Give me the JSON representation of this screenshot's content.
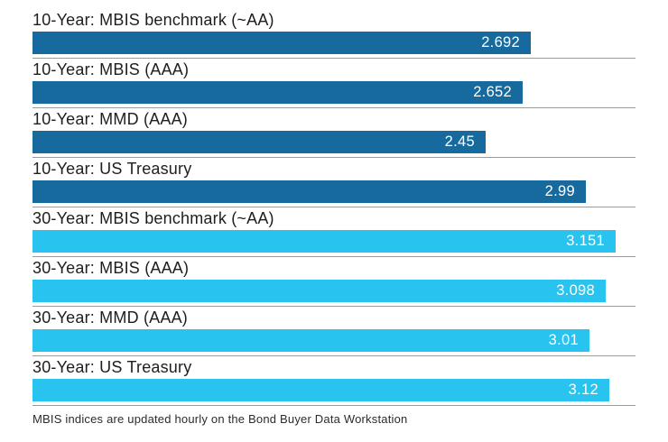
{
  "chart_data": {
    "type": "bar",
    "orientation": "horizontal",
    "title": "",
    "xlabel": "",
    "ylabel": "",
    "xlim": [
      0,
      3.3
    ],
    "grid": false,
    "legend": "none",
    "categories": [
      "10-Year: MBIS benchmark (~AA)",
      "10-Year: MBIS (AAA)",
      "10-Year: MMD (AAA)",
      "10-Year: US Treasury",
      "30-Year: MBIS benchmark (~AA)",
      "30-Year: MBIS (AAA)",
      "30-Year: MMD (AAA)",
      "30-Year: US Treasury"
    ],
    "values": [
      2.692,
      2.652,
      2.45,
      2.99,
      3.151,
      3.098,
      3.01,
      3.12
    ],
    "value_labels": [
      "2.692",
      "2.652",
      "2.45",
      "2.99",
      "3.151",
      "3.098",
      "3.01",
      "3.12"
    ],
    "bar_groups": [
      "10-year",
      "10-year",
      "10-year",
      "10-year",
      "30-year",
      "30-year",
      "30-year",
      "30-year"
    ],
    "colors": {
      "10-year": "#176a9e",
      "30-year": "#29c3ef"
    },
    "value_label_color": "#ffffff",
    "footnote": "MBIS indices are updated hourly on the Bond Buyer Data Workstation"
  }
}
